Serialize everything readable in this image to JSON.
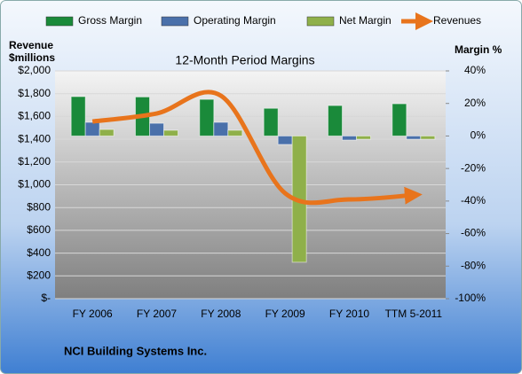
{
  "chart_data": {
    "type": "bar",
    "title": "12-Month Period Margins",
    "ylabel": [
      "Revenue",
      "$millions"
    ],
    "y2label": "Margin %",
    "footer": "NCI Building Systems Inc.",
    "categories": [
      "FY 2006",
      "FY 2007",
      "FY 2008",
      "FY 2009",
      "FY 2010",
      "TTM 5-2011"
    ],
    "series": [
      {
        "name": "Gross Margin",
        "type": "bar",
        "axis": "y2",
        "color": "#1a8a3a",
        "values": [
          24.2,
          24,
          22.5,
          17,
          18.7,
          19.8
        ]
      },
      {
        "name": "Operating Margin",
        "type": "bar",
        "axis": "y2",
        "color": "#4a70aa",
        "values": [
          8.4,
          7.8,
          8.4,
          -5.2,
          -2.5,
          -2
        ]
      },
      {
        "name": "Net Margin",
        "type": "bar",
        "axis": "y2",
        "color": "#8fb04a",
        "values": [
          4,
          3.5,
          3.5,
          -77.6,
          -2,
          -2
        ]
      },
      {
        "name": "Revenues",
        "type": "line",
        "axis": "y",
        "color": "#e8741c",
        "values": [
          1556,
          1626,
          1782,
          926,
          872,
          910
        ]
      }
    ],
    "ylim": [
      0,
      2000
    ],
    "yticks": [
      {
        "value": 0,
        "label": "$-"
      },
      {
        "value": 200,
        "label": "$200"
      },
      {
        "value": 400,
        "label": "$400"
      },
      {
        "value": 600,
        "label": "$600"
      },
      {
        "value": 800,
        "label": "$800"
      },
      {
        "value": 1000,
        "label": "$1,000"
      },
      {
        "value": 1200,
        "label": "$1,200"
      },
      {
        "value": 1400,
        "label": "$1,400"
      },
      {
        "value": 1600,
        "label": "$1,600"
      },
      {
        "value": 1800,
        "label": "$1,800"
      },
      {
        "value": 2000,
        "label": "$2,000"
      }
    ],
    "y2lim": [
      -100,
      40
    ],
    "y2ticks": [
      {
        "value": -100,
        "label": "-100%"
      },
      {
        "value": -80,
        "label": "-80%"
      },
      {
        "value": -60,
        "label": "-60%"
      },
      {
        "value": -40,
        "label": "-40%"
      },
      {
        "value": -20,
        "label": "-20%"
      },
      {
        "value": 0,
        "label": "0%"
      },
      {
        "value": 20,
        "label": "20%"
      },
      {
        "value": 40,
        "label": "40%"
      }
    ],
    "grid": true
  }
}
